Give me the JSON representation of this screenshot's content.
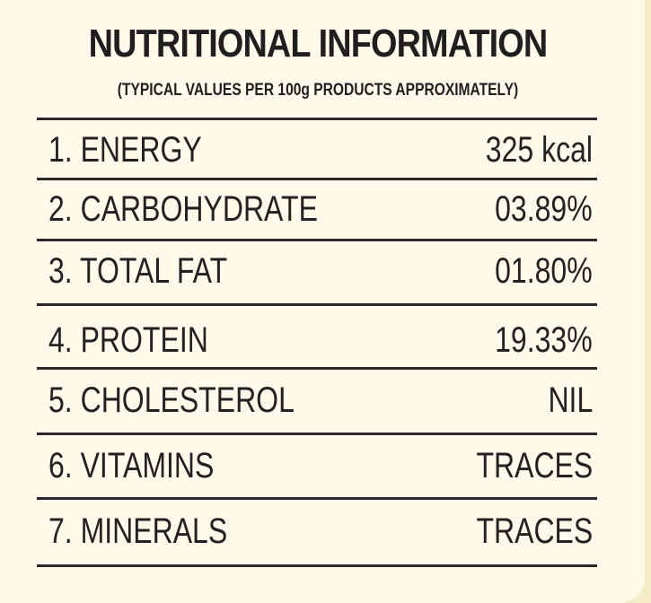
{
  "title": "NUTRITIONAL INFORMATION",
  "subtitle": "(TYPICAL VALUES PER 100g PRODUCTS APPROXIMATELY)",
  "rows": [
    {
      "label": "1.  ENERGY",
      "value": "325 kcal"
    },
    {
      "label": "2.  CARBOHYDRATE",
      "value": "03.89%"
    },
    {
      "label": "3.  TOTAL FAT",
      "value": "01.80%"
    },
    {
      "label": "4.  PROTEIN",
      "value": "19.33%"
    },
    {
      "label": "5.  CHOLESTEROL",
      "value": "NIL"
    },
    {
      "label": "6.  VITAMINS",
      "value": "TRACES"
    },
    {
      "label": "7.  MINERALS",
      "value": "TRACES"
    }
  ]
}
